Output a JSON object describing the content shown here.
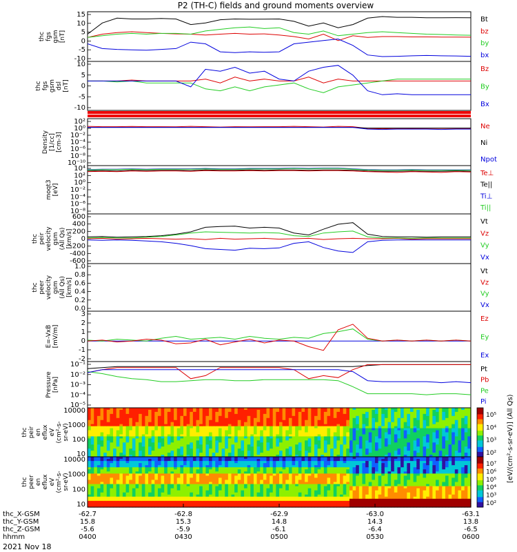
{
  "title": "P2 (TH-C) fields and ground moments overview",
  "date_label": "2021 Nov 18",
  "colors": {
    "black": "#000000",
    "red": "#dd0000",
    "green": "#22cc22",
    "blue": "#0000dd"
  },
  "chart_data": [
    {
      "type": "line",
      "ylabel": [
        "thc",
        "fgs",
        "gsm",
        "[nT]"
      ],
      "yticks": [
        "15",
        "10",
        "5",
        "0",
        "-5",
        "-10"
      ],
      "legend": [
        {
          "name": "Bt",
          "color": "black"
        },
        {
          "name": "bz",
          "color": "red"
        },
        {
          "name": "by",
          "color": "green"
        },
        {
          "name": "bx",
          "color": "blue"
        }
      ],
      "ylim": [
        -15,
        16
      ],
      "series": [
        {
          "name": "Bt",
          "values": [
            2,
            9,
            12,
            11.5,
            11.5,
            11.8,
            11.5,
            8,
            9,
            11,
            11.5,
            11.3,
            11.4,
            11.5,
            10,
            7,
            9,
            6,
            8,
            12,
            13,
            12.5,
            12.5,
            12.2,
            12.2,
            12.3,
            12.2
          ]
        },
        {
          "name": "bz",
          "values": [
            0,
            2,
            3,
            3.5,
            3,
            2.5,
            2.2,
            2,
            1.5,
            2,
            2.5,
            2,
            2.2,
            1.5,
            0.5,
            -1,
            2,
            -2,
            1,
            0,
            0.5,
            0.5,
            0.3,
            0.3,
            0.2,
            0.2,
            0.1
          ]
        },
        {
          "name": "by",
          "values": [
            0,
            1,
            2,
            2.5,
            2,
            2.5,
            2.5,
            2,
            4,
            5,
            6,
            6.5,
            5.5,
            6,
            3,
            2,
            4,
            1,
            2,
            3,
            3.5,
            3,
            2.5,
            2,
            1.8,
            1.5,
            1.3
          ]
        },
        {
          "name": "bx",
          "values": [
            -4,
            -7,
            -7.5,
            -7.8,
            -8,
            -7.5,
            -7,
            -3,
            -4,
            -9,
            -9.5,
            -9,
            -9.3,
            -9,
            -4,
            -3,
            -2,
            -1,
            -5,
            -11,
            -12,
            -11.8,
            -11.5,
            -11.3,
            -11.5,
            -11.6,
            -11.8
          ]
        }
      ]
    },
    {
      "type": "line",
      "ylabel": [
        "thc",
        "fgs",
        "gsm",
        "dsl",
        "[nT]"
      ],
      "yticks": [
        "10",
        "5",
        "0",
        "-5",
        "-10"
      ],
      "legend": [
        {
          "name": "Bz",
          "color": "red"
        },
        {
          "name": "By",
          "color": "green"
        },
        {
          "name": "Bx",
          "color": "blue"
        }
      ],
      "ylim": [
        -15,
        10
      ],
      "series": [
        {
          "name": "Bz",
          "values": [
            0,
            0,
            0,
            0.5,
            0,
            0,
            0,
            0,
            1,
            -1,
            2,
            0,
            1,
            0,
            0,
            2,
            -1,
            1,
            0,
            0,
            0,
            0,
            0,
            0,
            0,
            0,
            0
          ]
        },
        {
          "name": "By",
          "values": [
            0,
            0,
            -0.5,
            0,
            -1,
            -1,
            -1,
            -1,
            -4,
            -5,
            -3,
            -5,
            -3,
            -2,
            -1,
            -4,
            -6,
            -3,
            -2,
            -1,
            0,
            1,
            1,
            1,
            1,
            1,
            1
          ]
        },
        {
          "name": "Bx",
          "values": [
            0,
            0,
            0,
            0,
            0,
            0,
            0,
            -3,
            6,
            5,
            7,
            4,
            5,
            1,
            0,
            5,
            7,
            8,
            3,
            -5,
            -7,
            -6.5,
            -7,
            -7,
            -7,
            -7,
            -7
          ]
        }
      ]
    },
    {
      "type": "line",
      "ylabel": [
        "Density",
        "[1/cc]",
        "[cm-3]"
      ],
      "yticks": [
        "10²",
        "10⁰",
        "10⁻²",
        "10⁻⁴",
        "10⁻⁶",
        "10⁻⁸",
        "10⁻¹⁰"
      ],
      "legend": [
        {
          "name": "Ne",
          "color": "red"
        },
        {
          "name": "Ni",
          "color": "black"
        },
        {
          "name": "Npot",
          "color": "blue"
        }
      ],
      "ylim": [
        -11,
        2.5
      ],
      "series": [
        {
          "name": "Ne",
          "values": [
            0.3,
            0.2,
            0.2,
            0.25,
            0.2,
            0.2,
            0.15,
            0.3,
            0.2,
            0.1,
            0.2,
            0.15,
            0.2,
            0.2,
            0.3,
            0.2,
            0.1,
            0.3,
            0.2,
            -0.3,
            -0.4,
            -0.3,
            -0.35,
            -0.3,
            -0.3,
            -0.3,
            -0.3
          ]
        },
        {
          "name": "Ni",
          "values": [
            0,
            0,
            0,
            0,
            0,
            0,
            0,
            0,
            0,
            0,
            0,
            0,
            0,
            0,
            0,
            0,
            0,
            0,
            0,
            -0.2,
            -0.2,
            -0.2,
            -0.2,
            -0.2,
            -0.2,
            -0.2,
            -0.2
          ]
        },
        {
          "name": "Npot",
          "values": [
            0,
            0,
            0,
            0,
            0,
            0,
            0,
            0,
            0,
            0,
            0,
            0,
            0,
            0,
            0,
            0,
            0,
            0,
            0,
            -0.5,
            -0.6,
            -0.5,
            -0.5,
            -0.5,
            -0.6,
            -0.5,
            -0.5
          ]
        }
      ]
    },
    {
      "type": "line",
      "ylabel": [
        "moqt3",
        "[eV]"
      ],
      "yticks": [
        "10⁴",
        "10²",
        "10⁰",
        "10⁻²",
        "10⁻⁴",
        "10⁻⁶",
        "10⁻⁸"
      ],
      "legend": [
        {
          "name": "Te⊥",
          "color": "red"
        },
        {
          "name": "Te||",
          "color": "black"
        },
        {
          "name": "Ti⊥",
          "color": "blue"
        },
        {
          "name": "Ti||",
          "color": "green"
        }
      ],
      "ylim": [
        -9,
        4.5
      ],
      "series": [
        {
          "name": "Te||",
          "values": [
            3,
            3.1,
            3,
            3.2,
            3.1,
            3.2,
            3.2,
            3.1,
            3.3,
            3.2,
            3.2,
            3.3,
            3.2,
            3.3,
            3.3,
            3.2,
            3.3,
            3.3,
            3.2,
            3,
            2.9,
            2.9,
            3,
            2.9,
            2.9,
            3,
            2.9
          ]
        },
        {
          "name": "Ti⊥",
          "values": [
            3.4,
            3.5,
            3.5,
            3.6,
            3.5,
            3.6,
            3.6,
            3.6,
            3.7,
            3.6,
            3.6,
            3.7,
            3.7,
            3.7,
            3.8,
            3.7,
            3.8,
            3.8,
            3.6,
            3.4,
            3.3,
            3.3,
            3.4,
            3.3,
            3.3,
            3.3,
            3.3
          ]
        },
        {
          "name": "Ti||",
          "values": [
            3.3,
            3.4,
            3.4,
            3.5,
            3.4,
            3.5,
            3.5,
            3.5,
            3.6,
            3.5,
            3.5,
            3.6,
            3.6,
            3.6,
            3.7,
            3.6,
            3.7,
            3.7,
            3.5,
            3.3,
            3.2,
            3.2,
            3.3,
            3.2,
            3.2,
            3.2,
            3.2
          ]
        },
        {
          "name": "Te⊥",
          "values": [
            2.8,
            2.9,
            2.8,
            3,
            2.9,
            3,
            3,
            2.9,
            3.1,
            3,
            3,
            3.1,
            3,
            3.1,
            3.1,
            3,
            3.1,
            3.1,
            3,
            2.8,
            2.7,
            2.6,
            2.8,
            2.7,
            2.6,
            2.8,
            2.7
          ]
        }
      ]
    },
    {
      "type": "line",
      "ylabel": [
        "thc",
        "peir",
        "velocity",
        "gsm",
        "(All Qs)",
        "[km/s]"
      ],
      "yticks": [
        "600",
        "400",
        "200",
        "0",
        "-200",
        "-400",
        "-600"
      ],
      "legend": [
        {
          "name": "Vt",
          "color": "black"
        },
        {
          "name": "Vz",
          "color": "red"
        },
        {
          "name": "Vy",
          "color": "green"
        },
        {
          "name": "Vx",
          "color": "blue"
        }
      ],
      "ylim": [
        -650,
        650
      ],
      "series": [
        {
          "name": "Vt",
          "values": [
            50,
            60,
            40,
            50,
            60,
            80,
            120,
            180,
            300,
            320,
            330,
            280,
            300,
            280,
            150,
            100,
            250,
            380,
            420,
            120,
            60,
            50,
            50,
            40,
            50,
            50,
            50
          ]
        },
        {
          "name": "Vz",
          "values": [
            0,
            10,
            -10,
            0,
            10,
            0,
            -10,
            0,
            -20,
            10,
            -10,
            0,
            10,
            -10,
            0,
            10,
            -20,
            0,
            10,
            0,
            0,
            10,
            -10,
            0,
            0,
            0,
            0
          ]
        },
        {
          "name": "Vy",
          "values": [
            20,
            30,
            20,
            20,
            40,
            60,
            100,
            150,
            180,
            170,
            160,
            150,
            160,
            150,
            80,
            60,
            150,
            180,
            200,
            50,
            20,
            20,
            10,
            20,
            20,
            20,
            20
          ]
        },
        {
          "name": "Vx",
          "values": [
            -30,
            -40,
            -30,
            -40,
            -60,
            -80,
            -120,
            -180,
            -260,
            -280,
            -300,
            -250,
            -260,
            -240,
            -120,
            -80,
            -230,
            -320,
            -360,
            -80,
            -40,
            -30,
            -30,
            -30,
            -30,
            -30,
            -30
          ]
        }
      ]
    },
    {
      "type": "line",
      "ylabel": [
        "thc",
        "peer",
        "velocity",
        "gsm",
        "(All Qs)",
        "[km/s]"
      ],
      "yticks": [
        "1.0",
        "0.8",
        "0.6",
        "0.4",
        "0.2",
        "0.0"
      ],
      "legend": [
        {
          "name": "Vt",
          "color": "black"
        },
        {
          "name": "Vz",
          "color": "red"
        },
        {
          "name": "Vy",
          "color": "green"
        },
        {
          "name": "Vx",
          "color": "blue"
        }
      ],
      "ylim": [
        0,
        1.05
      ],
      "series": []
    },
    {
      "type": "line",
      "ylabel": [
        "E=-VxB",
        "[mV/m]"
      ],
      "yticks": [
        "3",
        "2",
        "1",
        "0",
        "-1",
        "-2"
      ],
      "legend": [
        {
          "name": "Ez",
          "color": "red"
        },
        {
          "name": "Ey",
          "color": "green"
        },
        {
          "name": "Ex",
          "color": "blue"
        }
      ],
      "ylim": [
        -2.2,
        3.2
      ],
      "series": [
        {
          "name": "Ex",
          "values": [
            0,
            0,
            0,
            0,
            0,
            0,
            0,
            0,
            0,
            0,
            0,
            0,
            0,
            0,
            0,
            0,
            0,
            0,
            0,
            0,
            0,
            0,
            0,
            0,
            0,
            0,
            0
          ]
        },
        {
          "name": "Ey",
          "values": [
            0.1,
            0,
            0.2,
            0.1,
            0,
            0.3,
            0.5,
            0.2,
            0.3,
            0.4,
            0.2,
            0.5,
            0.3,
            0.2,
            0.4,
            0.3,
            0.8,
            1,
            1.3,
            0.2,
            0,
            0.1,
            0,
            0.1,
            0,
            0.1,
            0
          ]
        },
        {
          "name": "Ez",
          "values": [
            0,
            0.1,
            -0.1,
            0,
            0.2,
            0.1,
            -0.3,
            -0.2,
            0.2,
            -0.4,
            -0.1,
            0.2,
            -0.2,
            0.1,
            0,
            -0.6,
            -1,
            1.2,
            1.8,
            0.3,
            0,
            0.1,
            0,
            0.1,
            0,
            0.1,
            0
          ]
        }
      ]
    },
    {
      "type": "line",
      "ylabel": [
        "Pressure",
        "[nPa]"
      ],
      "yticks": [
        "10⁻¹",
        "10⁻²",
        "10⁻³",
        "10⁻⁴",
        "10⁻⁵"
      ],
      "legend": [
        {
          "name": "Pt",
          "color": "black"
        },
        {
          "name": "Pb",
          "color": "red"
        },
        {
          "name": "Pe",
          "color": "green"
        },
        {
          "name": "Pi",
          "color": "blue"
        }
      ],
      "ylim": [
        -5.4,
        -0.8
      ],
      "series": [
        {
          "name": "Pt",
          "values": [
            -1.5,
            -1.4,
            -1.3,
            -1.3,
            -1.3,
            -1.3,
            -1.3,
            -1.3,
            -1.3,
            -1.3,
            -1.3,
            -1.3,
            -1.3,
            -1.3,
            -1.3,
            -1.3,
            -1.3,
            -1.3,
            -1.3,
            -1.2,
            -1.1,
            -1.1,
            -1.1,
            -1.1,
            -1.1,
            -1.1,
            -1.1
          ]
        },
        {
          "name": "Pb",
          "values": [
            -1.9,
            -1.6,
            -1.4,
            -1.4,
            -1.4,
            -1.4,
            -1.4,
            -2.5,
            -2.2,
            -1.4,
            -1.4,
            -1.4,
            -1.4,
            -1.4,
            -1.6,
            -2.5,
            -2.2,
            -2.4,
            -1.6,
            -1.1,
            -1.1,
            -1.1,
            -1.1,
            -1.1,
            -1.1,
            -1.1,
            -1.1
          ]
        },
        {
          "name": "Pe",
          "values": [
            -1.8,
            -2,
            -2.3,
            -2.5,
            -2.6,
            -2.8,
            -2.8,
            -2.7,
            -2.6,
            -2.6,
            -2.7,
            -2.7,
            -2.6,
            -2.6,
            -2.6,
            -2.6,
            -2.6,
            -2.7,
            -3.3,
            -4.0,
            -4.0,
            -4.0,
            -4.0,
            -4.1,
            -4.0,
            -4.0,
            -4.1
          ]
        },
        {
          "name": "Pi",
          "values": [
            -1.9,
            -1.6,
            -1.6,
            -1.6,
            -1.6,
            -1.6,
            -1.6,
            -1.6,
            -1.6,
            -1.6,
            -1.6,
            -1.6,
            -1.6,
            -1.6,
            -1.6,
            -1.6,
            -1.6,
            -1.6,
            -1.8,
            -2.7,
            -2.8,
            -2.8,
            -2.8,
            -2.8,
            -2.9,
            -2.8,
            -2.9
          ]
        }
      ]
    },
    {
      "type": "heatmap",
      "ylabel": [
        "thc",
        "peir",
        "en",
        "eflux",
        "eV",
        "(cm²-s-",
        "sr-eV)"
      ],
      "yticks": [
        "10000",
        "1000",
        "100",
        "10"
      ],
      "colorbar_label": "[eV/(cm²-s-sr-eV)] (All Qs)",
      "colorbar_ticks": [
        "10⁵",
        "10⁴",
        "10³",
        "10²"
      ]
    },
    {
      "type": "heatmap",
      "ylabel": [
        "thc",
        "peer",
        "en",
        "eflux",
        "eV",
        "(cm²-s-",
        "sr-eV)"
      ],
      "yticks": [
        "10000",
        "1000",
        "100",
        "10"
      ],
      "colorbar_ticks": [
        "10⁷",
        "10⁶",
        "10⁵",
        "10⁴",
        "10³",
        "10²"
      ]
    }
  ],
  "xaxis": {
    "row_labels": [
      "thc_X-GSM",
      "thc_Y-GSM",
      "thc_Z-GSM",
      "hhmm"
    ],
    "ticks": [
      {
        "vals": [
          "-62.7",
          "15.8",
          "-5.6",
          "0400"
        ]
      },
      {
        "vals": [
          "-62.8",
          "15.3",
          "-5.9",
          "0430"
        ]
      },
      {
        "vals": [
          "-62.9",
          "14.8",
          "-6.1",
          "0500"
        ]
      },
      {
        "vals": [
          "-63.0",
          "14.3",
          "-6.4",
          "0530"
        ]
      },
      {
        "vals": [
          "-63.1",
          "13.8",
          "-6.5",
          "0600"
        ]
      }
    ]
  }
}
